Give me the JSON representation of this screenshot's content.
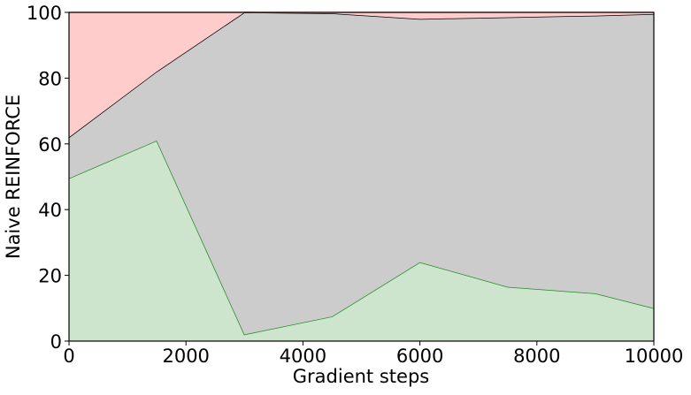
{
  "chart_data": {
    "type": "stacked_area",
    "x_label": "Gradient steps",
    "y_label": "Naive REINFORCE",
    "x": [
      0,
      1500,
      3000,
      4500,
      6000,
      7500,
      9000,
      10000
    ],
    "series": [
      {
        "color": "#cde5cd",
        "line_color": "#228b22",
        "values": [
          49.5,
          61,
          2,
          7.5,
          24,
          16.5,
          14.5,
          10
        ]
      },
      {
        "color": "#cccccc",
        "line_color": "#000000",
        "values": [
          12.5,
          21,
          98,
          92.2,
          74,
          82,
          84.5,
          89.5
        ]
      },
      {
        "color": "#ffcccc",
        "line_color": "#ff9999",
        "values": [
          38,
          18,
          0,
          0.3,
          2,
          1.5,
          1,
          0.5
        ]
      }
    ],
    "xlim": [
      0,
      10000
    ],
    "xticks": [
      0,
      2000,
      4000,
      6000,
      8000,
      10000
    ],
    "ylim": [
      0,
      100
    ],
    "yticks": [
      0,
      20,
      40,
      60,
      80,
      100
    ]
  }
}
